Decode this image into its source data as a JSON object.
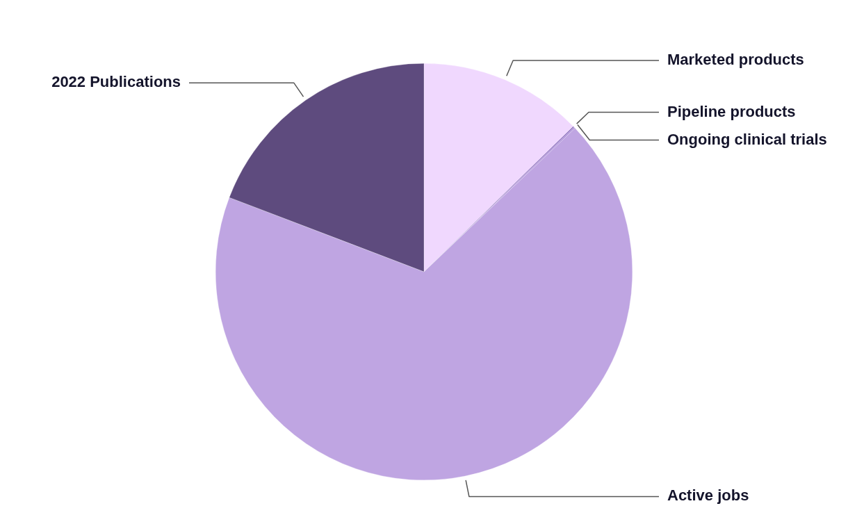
{
  "chart_data": {
    "type": "pie",
    "categories": [
      "Marketed products",
      "Pipeline products",
      "Ongoing clinical trials",
      "Active jobs",
      "2022 Publications"
    ],
    "values": [
      12.7,
      0.1,
      0.1,
      67.9,
      19.2
    ],
    "colors": [
      "#f0d8fe",
      "#8e6fbf",
      "#a88bd6",
      "#bfa5e2",
      "#5e4b7e"
    ],
    "legend": false
  }
}
